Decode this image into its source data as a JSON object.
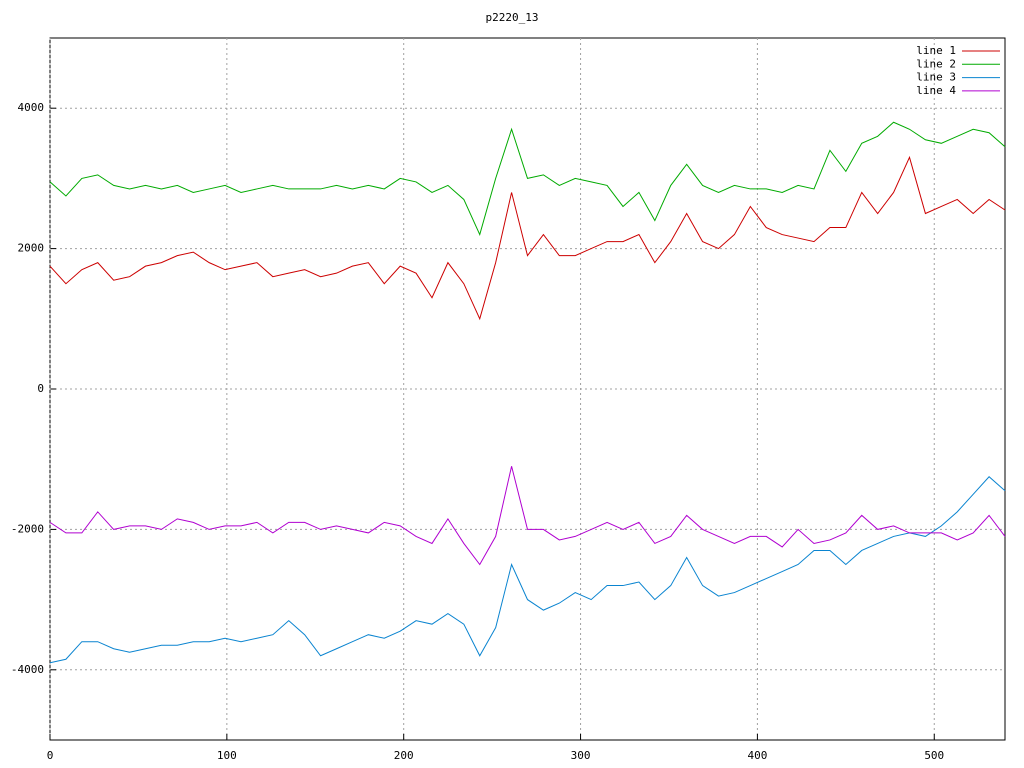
{
  "chart_data": {
    "type": "line",
    "title": "p2220_13",
    "x": [
      0,
      9,
      18,
      27,
      36,
      45,
      54,
      63,
      72,
      81,
      90,
      99,
      108,
      117,
      126,
      135,
      144,
      153,
      162,
      171,
      180,
      189,
      198,
      207,
      216,
      225,
      234,
      243,
      252,
      261,
      270,
      279,
      288,
      297,
      306,
      315,
      324,
      333,
      342,
      351,
      360,
      369,
      378,
      387,
      396,
      405,
      414,
      423,
      432,
      441,
      450,
      459,
      468,
      477,
      486,
      495,
      504,
      513,
      522,
      531,
      540
    ],
    "series": [
      {
        "name": "line 1",
        "color": "#cc0000",
        "values": [
          1750,
          1500,
          1700,
          1800,
          1550,
          1600,
          1750,
          1800,
          1900,
          1950,
          1800,
          1700,
          1750,
          1800,
          1600,
          1650,
          1700,
          1600,
          1650,
          1750,
          1800,
          1500,
          1750,
          1650,
          1300,
          1800,
          1500,
          1000,
          1800,
          2800,
          1900,
          2200,
          1900,
          1900,
          2000,
          2100,
          2100,
          2200,
          1800,
          2100,
          2500,
          2100,
          2000,
          2200,
          2600,
          2300,
          2200,
          2150,
          2100,
          2300,
          2300,
          2800,
          2500,
          2800,
          3300,
          2500,
          2600,
          2700,
          2500,
          2700,
          2550
        ]
      },
      {
        "name": "line 2",
        "color": "#00aa00",
        "values": [
          2950,
          2750,
          3000,
          3050,
          2900,
          2850,
          2900,
          2850,
          2900,
          2800,
          2850,
          2900,
          2800,
          2850,
          2900,
          2850,
          2850,
          2850,
          2900,
          2850,
          2900,
          2850,
          3000,
          2950,
          2800,
          2900,
          2700,
          2200,
          3000,
          3700,
          3000,
          3050,
          2900,
          3000,
          2950,
          2900,
          2600,
          2800,
          2400,
          2900,
          3200,
          2900,
          2800,
          2900,
          2850,
          2850,
          2800,
          2900,
          2850,
          3400,
          3100,
          3500,
          3600,
          3800,
          3700,
          3550,
          3500,
          3600,
          3700,
          3650,
          3450
        ]
      },
      {
        "name": "line 3",
        "color": "#0a84d0",
        "values": [
          -3900,
          -3850,
          -3600,
          -3600,
          -3700,
          -3750,
          -3700,
          -3650,
          -3650,
          -3600,
          -3600,
          -3550,
          -3600,
          -3550,
          -3500,
          -3300,
          -3500,
          -3800,
          -3700,
          -3600,
          -3500,
          -3550,
          -3450,
          -3300,
          -3350,
          -3200,
          -3350,
          -3800,
          -3400,
          -2500,
          -3000,
          -3150,
          -3050,
          -2900,
          -3000,
          -2800,
          -2800,
          -2750,
          -3000,
          -2800,
          -2400,
          -2800,
          -2950,
          -2900,
          -2800,
          -2700,
          -2600,
          -2500,
          -2300,
          -2300,
          -2500,
          -2300,
          -2200,
          -2100,
          -2050,
          -2100,
          -1950,
          -1750,
          -1500,
          -1250,
          -1450
        ]
      },
      {
        "name": "line 4",
        "color": "#b000d0",
        "values": [
          -1900,
          -2050,
          -2050,
          -1750,
          -2000,
          -1950,
          -1950,
          -2000,
          -1850,
          -1900,
          -2000,
          -1950,
          -1950,
          -1900,
          -2050,
          -1900,
          -1900,
          -2000,
          -1950,
          -2000,
          -2050,
          -1900,
          -1950,
          -2100,
          -2200,
          -1850,
          -2200,
          -2500,
          -2100,
          -1100,
          -2000,
          -2000,
          -2150,
          -2100,
          -2000,
          -1900,
          -2000,
          -1900,
          -2200,
          -2100,
          -1800,
          -2000,
          -2100,
          -2200,
          -2100,
          -2100,
          -2250,
          -2000,
          -2200,
          -2150,
          -2050,
          -1800,
          -2000,
          -1950,
          -2050,
          -2050,
          -2050,
          -2150,
          -2050,
          -1800,
          -2100
        ]
      }
    ],
    "xlim": [
      0,
      540
    ],
    "xticks": [
      0,
      100,
      200,
      300,
      400,
      500
    ],
    "ylim": [
      -5000,
      5000
    ],
    "yticks": [
      -4000,
      -2000,
      0,
      2000,
      4000
    ],
    "grid": true,
    "legend": "top-right"
  }
}
